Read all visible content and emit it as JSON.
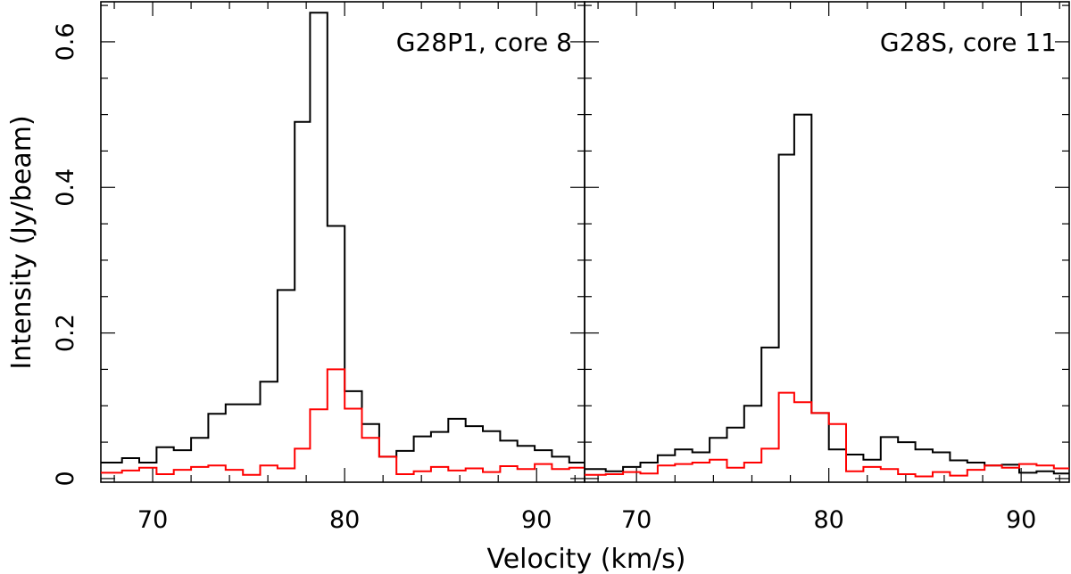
{
  "chart_data": {
    "type": "line",
    "step": true,
    "xlabel": "Velocity (km/s)",
    "ylabel": "Intensity (Jy/beam)",
    "xlim": [
      67.3,
      92.5
    ],
    "ylim": [
      -0.005,
      0.655
    ],
    "x_ticks": [
      70,
      80,
      90
    ],
    "y_ticks": [
      0,
      0.2,
      0.4,
      0.6
    ],
    "y_tick_labels": [
      "0",
      "0.2",
      "0.4",
      "0.6"
    ],
    "bin_edges": [
      67.3,
      68.4,
      69.3,
      70.2,
      71.1,
      72.0,
      72.9,
      73.8,
      74.7,
      75.6,
      76.5,
      77.4,
      78.2,
      79.1,
      80.0,
      80.9,
      81.8,
      82.7,
      83.6,
      84.5,
      85.4,
      86.3,
      87.2,
      88.1,
      89.0,
      89.9,
      90.8,
      91.7,
      92.5
    ],
    "panels": [
      {
        "title": "G28P1, core 8",
        "series": [
          {
            "color": "#000000",
            "values": [
              0.022,
              0.028,
              0.022,
              0.043,
              0.039,
              0.056,
              0.089,
              0.102,
              0.102,
              0.133,
              0.259,
              0.49,
              0.64,
              0.347,
              0.12,
              0.075,
              0.03,
              0.038,
              0.058,
              0.064,
              0.082,
              0.072,
              0.065,
              0.052,
              0.045,
              0.039,
              0.03,
              0.022
            ]
          },
          {
            "color": "#ff0000",
            "values": [
              0.008,
              0.011,
              0.015,
              0.006,
              0.012,
              0.016,
              0.018,
              0.012,
              0.005,
              0.018,
              0.014,
              0.041,
              0.095,
              0.15,
              0.096,
              0.056,
              0.03,
              0.006,
              0.01,
              0.016,
              0.011,
              0.014,
              0.009,
              0.017,
              0.013,
              0.02,
              0.013,
              0.015
            ]
          }
        ]
      },
      {
        "title": "G28S, core 11",
        "series": [
          {
            "color": "#000000",
            "values": [
              0.013,
              0.01,
              0.016,
              0.022,
              0.032,
              0.04,
              0.036,
              0.056,
              0.07,
              0.1,
              0.18,
              0.445,
              0.5,
              0.09,
              0.04,
              0.033,
              0.026,
              0.057,
              0.05,
              0.04,
              0.036,
              0.025,
              0.022,
              0.018,
              0.019,
              0.008,
              0.01,
              0.007
            ]
          },
          {
            "color": "#ff0000",
            "values": [
              0.005,
              0.006,
              0.009,
              0.007,
              0.018,
              0.02,
              0.022,
              0.026,
              0.015,
              0.022,
              0.041,
              0.118,
              0.105,
              0.09,
              0.075,
              0.01,
              0.016,
              0.013,
              0.006,
              0.003,
              0.009,
              0.004,
              0.012,
              0.018,
              0.015,
              0.02,
              0.018,
              0.014
            ]
          }
        ]
      }
    ]
  }
}
